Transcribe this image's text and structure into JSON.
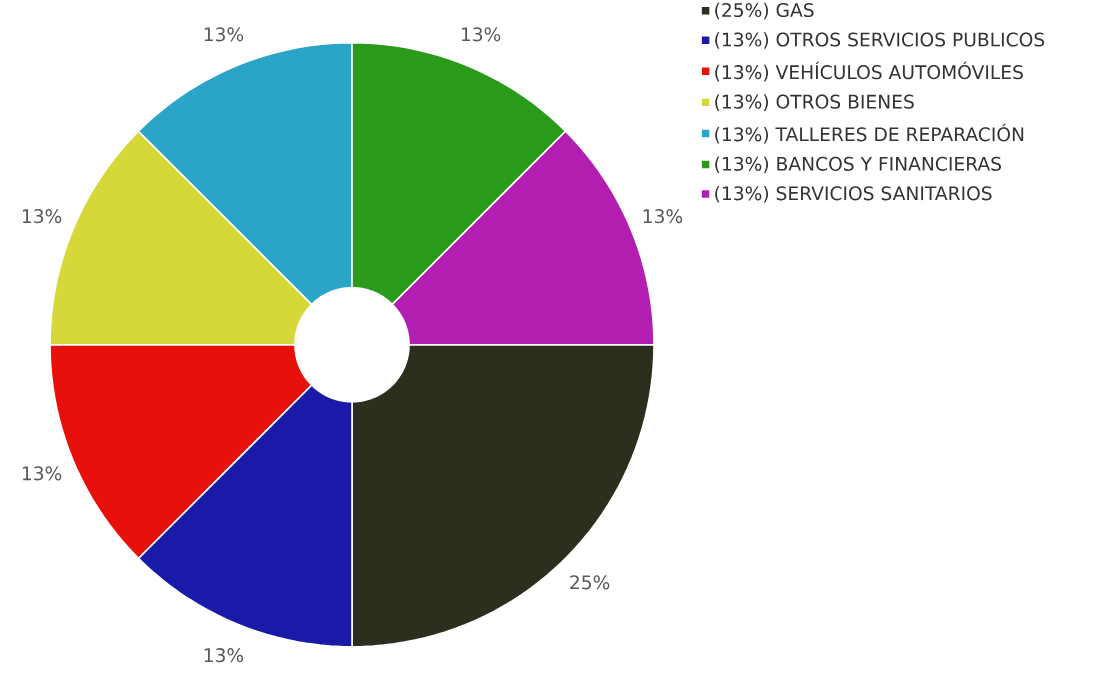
{
  "chart_data": {
    "type": "donut",
    "categories": [
      "(25%) GAS",
      "(13%) OTROS SERVICIOS PUBLICOS",
      "(13%) VEHÍCULOS AUTOMÓVILES",
      "(13%) OTROS BIENES",
      "(13%) TALLERES DE REPARACIÓN",
      "(13%) BANCOS Y FINANCIERAS",
      "(13%) SERVICIOS SANITARIOS"
    ],
    "values": [
      25,
      12.5,
      12.5,
      12.5,
      12.5,
      12.5,
      12.5
    ],
    "value_labels": [
      "25%",
      "13%",
      "13%",
      "13%",
      "13%",
      "13%",
      "13%"
    ],
    "colors": [
      "#2b2f1e",
      "#1a1aa8",
      "#e8100a",
      "#d6d83a",
      "#2aa5c8",
      "#2a9a1a",
      "#b21fb0"
    ],
    "legend": "top right"
  }
}
